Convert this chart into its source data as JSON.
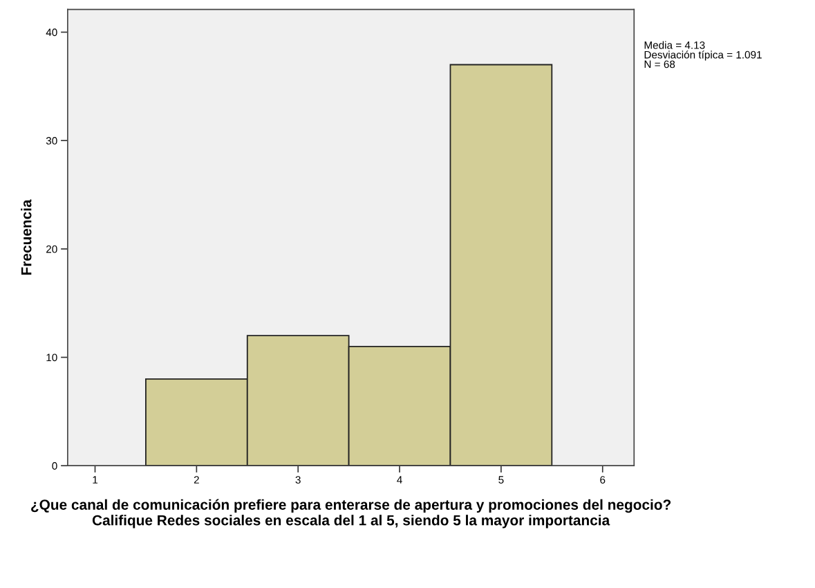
{
  "chart_data": {
    "type": "histogram",
    "bins": [
      1.5,
      2.5,
      3.5,
      4.5,
      5.5
    ],
    "values": [
      8,
      12,
      11,
      37
    ],
    "color": "#d3ce97",
    "xlabel": "¿Que canal de comunicación prefiere para enterarse de apertura y promociones del negocio? Califique Redes sociales en escala del 1 al 5, siendo 5 la mayor importancia",
    "ylabel": "Frecuencia",
    "xlim": [
      0.73,
      6.31
    ],
    "xticks": [
      1,
      2,
      3,
      4,
      5,
      6
    ],
    "ylim": [
      0,
      42.1
    ],
    "yticks": [
      0,
      10,
      20,
      30,
      40
    ],
    "annotations": [
      "Media = 4.13\nDesviación típica = 1.091\nN = 68"
    ],
    "grid": false
  }
}
